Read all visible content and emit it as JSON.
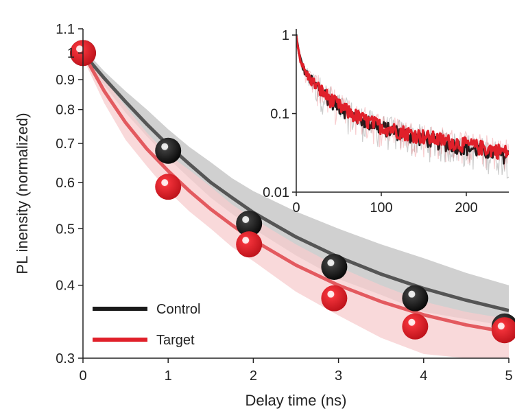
{
  "chart_data": [
    {
      "type": "scatter",
      "xlabel": "Delay time (ns)",
      "ylabel": "PL inensity (normalized)",
      "yscale": "log",
      "xlim": [
        0,
        5
      ],
      "ylim": [
        0.3,
        1.1
      ],
      "xticks": [
        "0",
        "1",
        "2",
        "3",
        "4",
        "5"
      ],
      "yticks": [
        {
          "value": 0.3,
          "label": "0.3"
        },
        {
          "value": 0.4,
          "label": "0.4"
        },
        {
          "value": 0.5,
          "label": "0.5"
        },
        {
          "value": 0.6,
          "label": "0.6"
        },
        {
          "value": 0.7,
          "label": "0.7"
        },
        {
          "value": 0.8,
          "label": "0.8"
        },
        {
          "value": 0.9,
          "label": "0.9"
        },
        {
          "value": 1.0,
          "label": "1"
        },
        {
          "value": 1.1,
          "label": "1.1"
        }
      ],
      "legend_position": "bottom-left",
      "series": [
        {
          "name": "Control",
          "color": "#1a1a1a",
          "fit_color": "#555555",
          "band_color": "#c8c8c8",
          "points": [
            {
              "x": 0,
              "y": 1.0
            },
            {
              "x": 1,
              "y": 0.68
            },
            {
              "x": 1.95,
              "y": 0.51
            },
            {
              "x": 2.95,
              "y": 0.43
            },
            {
              "x": 3.9,
              "y": 0.38
            },
            {
              "x": 4.95,
              "y": 0.34
            }
          ],
          "fit": {
            "x": [
              0,
              0.25,
              0.5,
              0.75,
              1,
              1.25,
              1.5,
              1.75,
              2,
              2.5,
              3,
              3.5,
              4,
              4.5,
              5
            ],
            "y": [
              1.0,
              0.905,
              0.825,
              0.755,
              0.695,
              0.645,
              0.6,
              0.565,
              0.533,
              0.484,
              0.447,
              0.418,
              0.395,
              0.377,
              0.362
            ]
          },
          "band_upper": [
            1.02,
            0.93,
            0.86,
            0.8,
            0.74,
            0.69,
            0.65,
            0.61,
            0.58,
            0.535,
            0.5,
            0.47,
            0.445,
            0.42,
            0.4
          ],
          "band_lower": [
            0.98,
            0.88,
            0.79,
            0.72,
            0.66,
            0.61,
            0.565,
            0.53,
            0.5,
            0.45,
            0.41,
            0.385,
            0.36,
            0.35,
            0.34
          ]
        },
        {
          "name": "Target",
          "color": "#e0202a",
          "fit_color": "#e35a5f",
          "band_color": "#f7cccd",
          "points": [
            {
              "x": 0,
              "y": 1.0
            },
            {
              "x": 1,
              "y": 0.59
            },
            {
              "x": 1.95,
              "y": 0.47
            },
            {
              "x": 2.95,
              "y": 0.38
            },
            {
              "x": 3.9,
              "y": 0.34
            },
            {
              "x": 4.95,
              "y": 0.335
            }
          ],
          "fit": {
            "x": [
              0,
              0.25,
              0.5,
              0.75,
              1,
              1.25,
              1.5,
              1.75,
              2,
              2.5,
              3,
              3.5,
              4,
              4.5,
              5
            ],
            "y": [
              1.0,
              0.86,
              0.76,
              0.685,
              0.628,
              0.58,
              0.54,
              0.507,
              0.478,
              0.433,
              0.4,
              0.375,
              0.356,
              0.342,
              0.332
            ]
          },
          "band_upper": [
            1.02,
            0.9,
            0.81,
            0.73,
            0.67,
            0.63,
            0.59,
            0.55,
            0.52,
            0.47,
            0.43,
            0.4,
            0.375,
            0.36,
            0.35
          ],
          "band_lower": [
            0.98,
            0.82,
            0.71,
            0.64,
            0.58,
            0.535,
            0.5,
            0.465,
            0.44,
            0.39,
            0.355,
            0.325,
            0.305,
            0.3,
            0.3
          ]
        }
      ]
    },
    {
      "type": "line",
      "inset": true,
      "yscale": "log",
      "xlim": [
        0,
        250
      ],
      "ylim": [
        0.01,
        1.2
      ],
      "xticks": [
        "0",
        "100",
        "200"
      ],
      "yticks": [
        {
          "value": 1,
          "label": "1"
        },
        {
          "value": 0.1,
          "label": "0.1"
        },
        {
          "value": 0.01,
          "label": "0.01"
        }
      ],
      "series": [
        {
          "color": "#1a1a1a",
          "decay": [
            {
              "a": 0.55,
              "tau": 3
            },
            {
              "a": 0.35,
              "tau": 25
            },
            {
              "a": 0.1,
              "tau": 200
            }
          ],
          "noise": 0.22
        },
        {
          "color": "#e0202a",
          "decay": [
            {
              "a": 0.55,
              "tau": 3
            },
            {
              "a": 0.35,
              "tau": 25
            },
            {
              "a": 0.1,
              "tau": 220
            }
          ],
          "noise": 0.22
        }
      ]
    }
  ]
}
